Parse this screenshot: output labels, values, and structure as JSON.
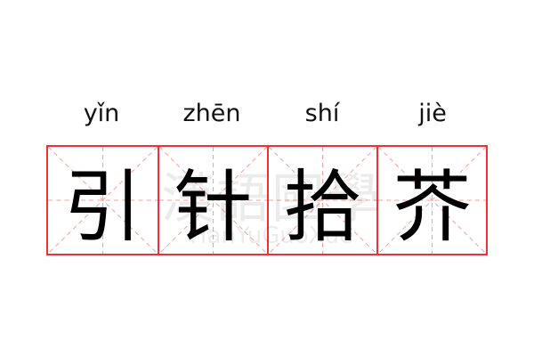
{
  "pinyin": [
    "yǐn",
    "zhēn",
    "shí",
    "jiè"
  ],
  "characters": [
    "引",
    "针",
    "拾",
    "芥"
  ],
  "watermark": {
    "chinese": "漢語國學",
    "latin": "HanYuGuoXue"
  },
  "colors": {
    "grid_border": "#f23030",
    "grid_guides": "#f8a0a0",
    "text": "#000000"
  }
}
